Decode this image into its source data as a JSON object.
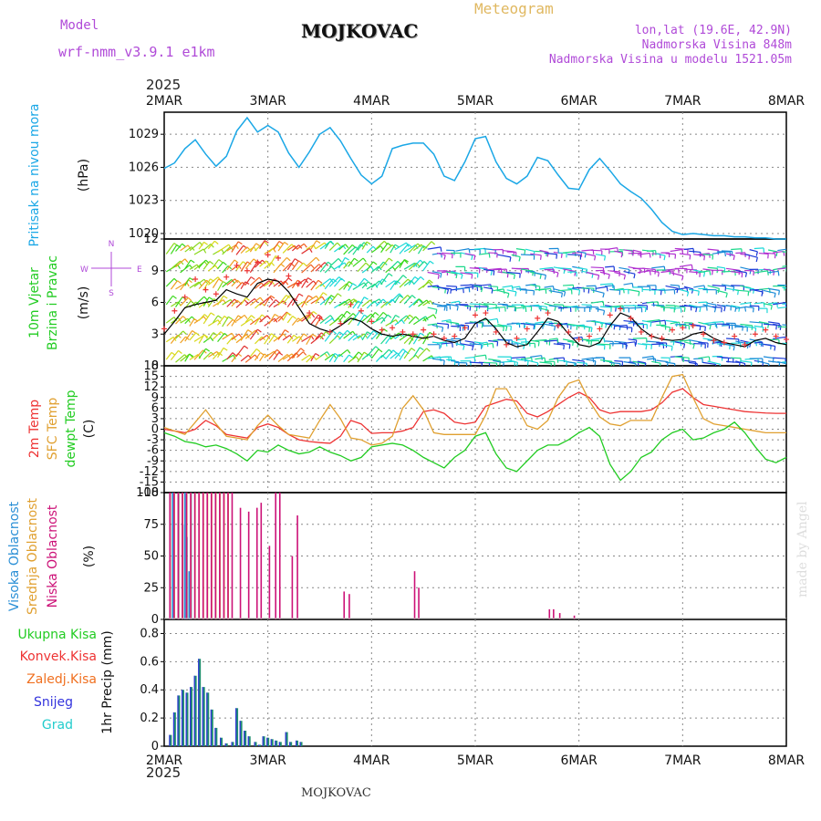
{
  "header": {
    "model_label": "Model",
    "model_name": "wrf-nmm_v3.9.1 e1km",
    "station": "MOJKOVAC",
    "product": "Meteogram",
    "coords": "lon,lat (19.6E, 42.9N)",
    "elev": "Nadmorska Visina 848m",
    "elev_model": "Nadmorska Visina u modelu 1521.05m",
    "year_top": "2025",
    "year_bottom": "2025",
    "footer": "MOJKOVAC",
    "watermark": "made by Angel"
  },
  "colors": {
    "pressure": "#1aa7e6",
    "temp2m": "#ee3333",
    "sfc": "#e0a030",
    "dewpt": "#22cc22",
    "high_cloud": "#2a8fd6",
    "mid_cloud": "#e0a030",
    "low_cloud": "#cc1177",
    "precip_total": "#22cc22",
    "precip_conv": "#ee3333",
    "precip_frz": "#f07020",
    "precip_snow": "#3333dd",
    "precip_grad": "#22cccc"
  },
  "x_ticks": [
    "2MAR",
    "3MAR",
    "4MAR",
    "5MAR",
    "6MAR",
    "7MAR",
    "8MAR"
  ],
  "chart_data": [
    {
      "type": "line",
      "panel": "pressure",
      "ylabel_rot": "Pritisak na nivou mora",
      "unit": "(hPa)",
      "yticks": [
        1020,
        1023,
        1026,
        1029
      ],
      "ylim": [
        1019.5,
        1031
      ],
      "x_days": [
        0,
        0.1,
        0.2,
        0.3,
        0.4,
        0.5,
        0.6,
        0.7,
        0.8,
        0.9,
        1.0,
        1.1,
        1.2,
        1.3,
        1.4,
        1.5,
        1.6,
        1.7,
        1.8,
        1.9,
        2.0,
        2.1,
        2.2,
        2.3,
        2.4,
        2.5,
        2.6,
        2.7,
        2.8,
        2.9,
        3.0,
        3.1,
        3.2,
        3.3,
        3.4,
        3.5,
        3.6,
        3.7,
        3.8,
        3.9,
        4.0,
        4.1,
        4.2,
        4.3,
        4.4,
        4.5,
        4.6,
        4.7,
        4.8,
        4.9,
        5.0,
        5.1,
        5.2,
        5.3,
        5.4,
        5.5,
        5.6,
        5.7,
        5.8,
        5.9,
        6.0
      ],
      "values": [
        1025.9,
        1026.4,
        1027.7,
        1028.5,
        1027.2,
        1026.1,
        1027.0,
        1029.3,
        1030.5,
        1029.2,
        1029.8,
        1029.2,
        1027.3,
        1026.0,
        1027.4,
        1029.0,
        1029.6,
        1028.4,
        1026.8,
        1025.3,
        1024.5,
        1025.2,
        1027.7,
        1028.0,
        1028.2,
        1028.2,
        1027.2,
        1025.2,
        1024.8,
        1026.5,
        1028.6,
        1028.8,
        1026.5,
        1025.0,
        1024.5,
        1025.2,
        1026.9,
        1026.6,
        1025.3,
        1024.1,
        1024.0,
        1025.8,
        1026.8,
        1025.7,
        1024.5,
        1023.8,
        1023.2,
        1022.2,
        1021.0,
        1020.2,
        1019.9,
        1020.0,
        1019.9,
        1019.8,
        1019.8,
        1019.7,
        1019.7,
        1019.6,
        1019.6,
        1019.5,
        1019.5
      ],
      "series": [
        {
          "name": "",
          "values": []
        }
      ]
    },
    {
      "type": "line",
      "panel": "wind",
      "ylabel_rot1": "10m Vjetar",
      "ylabel_rot2": "Brzina i Pravac",
      "unit": "(m/s)",
      "compass": {
        "w": "W",
        "e": "E",
        "n": "N",
        "s": "S"
      },
      "yticks": [
        0,
        3,
        6,
        9,
        12
      ],
      "ylim": [
        0,
        12
      ],
      "x_days": [
        0,
        0.1,
        0.2,
        0.3,
        0.4,
        0.5,
        0.6,
        0.7,
        0.8,
        0.9,
        1.0,
        1.1,
        1.2,
        1.3,
        1.4,
        1.5,
        1.6,
        1.7,
        1.8,
        1.9,
        2.0,
        2.1,
        2.2,
        2.3,
        2.4,
        2.5,
        2.6,
        2.7,
        2.8,
        2.9,
        3.0,
        3.1,
        3.2,
        3.3,
        3.4,
        3.5,
        3.6,
        3.7,
        3.8,
        3.9,
        4.0,
        4.1,
        4.2,
        4.3,
        4.4,
        4.5,
        4.6,
        4.7,
        4.8,
        4.9,
        5.0,
        5.1,
        5.2,
        5.3,
        5.4,
        5.5,
        5.6,
        5.7,
        5.8,
        5.9,
        6.0
      ],
      "speed": [
        3.0,
        4.2,
        5.5,
        5.8,
        6.0,
        6.2,
        7.2,
        6.8,
        6.5,
        7.8,
        8.2,
        8.0,
        7.0,
        5.5,
        4.0,
        3.5,
        3.2,
        3.8,
        4.5,
        4.2,
        3.5,
        3.0,
        2.8,
        3.0,
        2.8,
        2.6,
        2.8,
        2.4,
        2.2,
        2.6,
        4.0,
        4.5,
        3.5,
        2.2,
        1.8,
        2.0,
        3.2,
        4.5,
        4.2,
        3.0,
        2.0,
        1.8,
        2.2,
        3.8,
        5.0,
        4.6,
        3.5,
        2.8,
        2.5,
        2.4,
        2.5,
        3.0,
        3.2,
        2.6,
        2.2,
        2.0,
        1.8,
        2.4,
        2.6,
        2.2,
        2.0
      ],
      "gust": [
        3.5,
        5.2,
        6.5,
        8.2,
        7.2,
        6.8,
        8.4,
        9.5,
        9.0,
        9.8,
        10.5,
        10.2,
        8.5,
        7.8,
        5.0,
        4.5,
        3.2,
        4.0,
        5.8,
        5.2,
        4.2,
        3.4,
        3.6,
        3.2,
        3.0,
        3.4,
        3.0,
        2.6,
        2.8,
        3.6,
        4.8,
        5.0,
        3.2,
        2.0,
        2.6,
        3.5,
        4.5,
        5.0,
        3.8,
        3.2,
        2.5,
        2.8,
        3.5,
        4.8,
        5.4,
        4.5,
        3.2,
        2.8,
        2.6,
        3.4,
        3.6,
        3.8,
        3.0,
        2.4,
        2.2,
        2.8,
        2.0,
        3.0,
        3.4,
        2.8,
        2.5
      ]
    },
    {
      "type": "line",
      "panel": "temperature",
      "ylabel_rot1": "2m Temp",
      "ylabel_rot2": "SFC Temp",
      "ylabel_rot3": "dewpt Temp",
      "unit": "(C)",
      "yticks": [
        -18,
        -15,
        -12,
        -9,
        -6,
        -3,
        0,
        3,
        6,
        9,
        12,
        15,
        18
      ],
      "ylim": [
        -18,
        18
      ],
      "x_days": [
        0,
        0.1,
        0.2,
        0.3,
        0.4,
        0.5,
        0.6,
        0.7,
        0.8,
        0.9,
        1.0,
        1.1,
        1.2,
        1.3,
        1.4,
        1.5,
        1.6,
        1.7,
        1.8,
        1.9,
        2.0,
        2.1,
        2.2,
        2.3,
        2.4,
        2.5,
        2.6,
        2.7,
        2.8,
        2.9,
        3.0,
        3.1,
        3.2,
        3.3,
        3.4,
        3.5,
        3.6,
        3.7,
        3.8,
        3.9,
        4.0,
        4.1,
        4.2,
        4.3,
        4.4,
        4.5,
        4.6,
        4.7,
        4.8,
        4.9,
        5.0,
        5.1,
        5.2,
        5.3,
        5.4,
        5.5,
        5.6,
        5.7,
        5.8,
        5.9,
        6.0
      ],
      "series": [
        {
          "name": "2m Temp",
          "values": [
            0,
            -0.5,
            -1.0,
            0.0,
            2.5,
            1.0,
            -1.5,
            -2.0,
            -2.5,
            0.5,
            1.5,
            0.5,
            -1.5,
            -3.0,
            -3.5,
            -3.8,
            -4.0,
            -2.0,
            2.5,
            1.5,
            -1.2,
            -1.0,
            -1.0,
            -0.5,
            0.5,
            5.0,
            5.5,
            4.5,
            2.0,
            1.5,
            2.0,
            6.5,
            7.5,
            8.5,
            8.0,
            4.5,
            3.5,
            5.0,
            7.0,
            9.0,
            10.5,
            9.0,
            5.5,
            4.5,
            5.0,
            5.0,
            5.0,
            5.5,
            7.5,
            10.5,
            11.5,
            9.0,
            7.0,
            6.5,
            6.0,
            5.5,
            5.0,
            4.8,
            4.6,
            4.5,
            4.5
          ]
        },
        {
          "name": "SFC Temp",
          "values": [
            0.5,
            -0.5,
            -1.5,
            2.0,
            5.5,
            1.5,
            -2.0,
            -2.5,
            -3.0,
            1.0,
            4.0,
            1.0,
            -1.5,
            -2.0,
            -2.5,
            2.5,
            7.0,
            3.0,
            -2.5,
            -3.0,
            -4.5,
            -4.0,
            -2.0,
            6.0,
            9.5,
            5.5,
            -1.0,
            -1.5,
            -1.5,
            -1.5,
            -1.5,
            4.0,
            11.5,
            11.5,
            6.5,
            1.0,
            0.0,
            2.5,
            9.0,
            13.0,
            14.0,
            8.0,
            3.5,
            1.5,
            1.0,
            2.5,
            2.5,
            2.5,
            9.0,
            15.0,
            15.5,
            9.0,
            3.0,
            1.5,
            1.0,
            0.5,
            0.0,
            -0.5,
            -1.0,
            -1.0,
            -1.0
          ]
        },
        {
          "name": "dewpt Temp",
          "values": [
            -1.0,
            -2.0,
            -3.5,
            -4.0,
            -5.0,
            -4.5,
            -5.5,
            -7.0,
            -9.0,
            -6.0,
            -6.5,
            -4.5,
            -6.0,
            -7.0,
            -6.5,
            -5.0,
            -6.5,
            -7.5,
            -9.0,
            -8.0,
            -5.0,
            -4.5,
            -4.0,
            -4.5,
            -6.0,
            -8.0,
            -9.5,
            -11.0,
            -8.0,
            -6.0,
            -2.0,
            -1.0,
            -7.0,
            -11.0,
            -12.0,
            -9.0,
            -6.0,
            -4.5,
            -4.5,
            -3.0,
            -1.0,
            0.5,
            -2.0,
            -10.0,
            -14.5,
            -12.0,
            -8.0,
            -6.5,
            -3.0,
            -1.0,
            0.0,
            -3.0,
            -2.5,
            -1.0,
            0.0,
            2.0,
            -1.0,
            -5.0,
            -8.5,
            -9.5,
            -8.0
          ]
        }
      ]
    },
    {
      "type": "bar",
      "panel": "cloud",
      "ylabel_rot1": "Visoka Oblacnost",
      "ylabel_rot2": "Srednja Oblacnost",
      "ylabel_rot3": "Niska Oblacnost",
      "unit": "(%)",
      "yticks": [
        0,
        25,
        50,
        75,
        100
      ],
      "ylim": [
        0,
        100
      ],
      "series": [
        {
          "name": "Visoka Oblacnost",
          "x_days": [
            0.08,
            0.14,
            0.18,
            0.2,
            0.22,
            0.24,
            0.26
          ],
          "values": [
            100,
            100,
            75,
            100,
            65,
            38,
            100
          ]
        },
        {
          "name": "Srednja Oblacnost",
          "x_days": [
            0.04,
            0.08,
            0.12,
            0.16,
            0.2,
            0.24,
            0.28,
            0.32,
            0.36,
            0.4,
            0.44,
            0.48,
            0.52,
            0.56,
            0.6
          ],
          "values": [
            100,
            100,
            100,
            100,
            100,
            100,
            100,
            100,
            100,
            100,
            100,
            100,
            100,
            100,
            100
          ]
        },
        {
          "name": "Niska Oblacnost",
          "x_days": [
            0.02,
            0.06,
            0.1,
            0.14,
            0.18,
            0.22,
            0.26,
            0.3,
            0.34,
            0.38,
            0.42,
            0.46,
            0.5,
            0.54,
            0.58,
            0.62,
            0.7,
            0.78,
            0.86,
            0.9,
            0.98,
            1.04,
            1.08,
            1.2,
            1.25,
            1.7,
            1.75,
            2.38,
            2.42,
            3.68,
            3.72,
            3.78,
            3.92
          ],
          "values": [
            100,
            100,
            100,
            100,
            100,
            100,
            100,
            100,
            100,
            100,
            100,
            100,
            100,
            100,
            100,
            100,
            88,
            85,
            88,
            92,
            58,
            100,
            100,
            50,
            82,
            22,
            20,
            38,
            25,
            8,
            8,
            5,
            3
          ]
        }
      ]
    },
    {
      "type": "bar",
      "panel": "precip",
      "ylabel_rot": "1hr Precip (mm)",
      "legend_labels": [
        "Ukupna Kisa",
        "Konvek.Kisa",
        "Zaledj.Kisa",
        "Snijeg",
        "Grad"
      ],
      "yticks": [
        0,
        0.2,
        0.4,
        0.6,
        0.8
      ],
      "ylim": [
        0,
        0.9
      ],
      "x_days": [
        0.06,
        0.1,
        0.14,
        0.18,
        0.22,
        0.26,
        0.3,
        0.34,
        0.38,
        0.42,
        0.46,
        0.5,
        0.55,
        0.6,
        0.66,
        0.7,
        0.74,
        0.78,
        0.82,
        0.88,
        0.92,
        0.96,
        1.0,
        1.04,
        1.08,
        1.12,
        1.18,
        1.22,
        1.28,
        1.32
      ],
      "values": [
        0.08,
        0.24,
        0.36,
        0.4,
        0.38,
        0.42,
        0.5,
        0.62,
        0.42,
        0.38,
        0.26,
        0.13,
        0.06,
        0.02,
        0.03,
        0.27,
        0.18,
        0.11,
        0.07,
        0.03,
        0.01,
        0.07,
        0.06,
        0.05,
        0.04,
        0.03,
        0.1,
        0.03,
        0.04,
        0.03
      ]
    }
  ]
}
